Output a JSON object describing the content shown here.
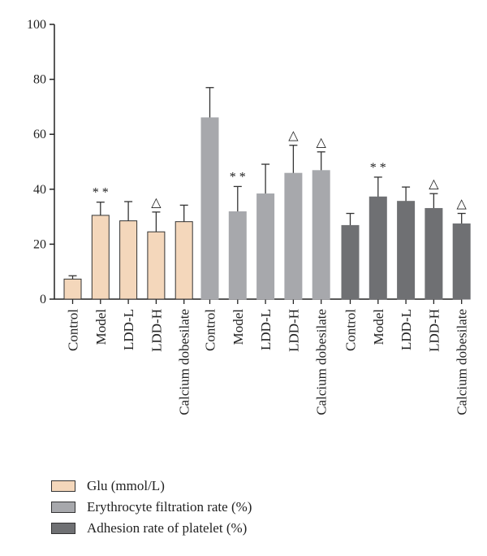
{
  "chart_data": {
    "type": "bar",
    "ylim": [
      0,
      100
    ],
    "yticks": [
      0,
      20,
      40,
      60,
      80,
      100
    ],
    "categories": [
      "Control",
      "Model",
      "LDD-L",
      "LDD-H",
      "Calcium dobesilate"
    ],
    "series": [
      {
        "name": "Glu (mmol/L)",
        "color": "#f4d7bb",
        "values": [
          7.3,
          30.5,
          28.5,
          24.5,
          28.2
        ],
        "errors": [
          1.2,
          4.8,
          7.0,
          7.2,
          6.0
        ],
        "annotations": [
          "",
          "**",
          "",
          "△",
          ""
        ]
      },
      {
        "name": "Erythrocyte filtration rate (%)",
        "color": "#a7a8ac",
        "values": [
          66.0,
          31.8,
          38.3,
          45.8,
          46.8
        ],
        "errors": [
          11.0,
          9.2,
          10.8,
          10.2,
          6.8
        ],
        "annotations": [
          "",
          "**",
          "",
          "△",
          "△"
        ]
      },
      {
        "name": "Adhesion rate of platelet (%)",
        "color": "#6f7073",
        "values": [
          26.8,
          37.2,
          35.6,
          33.0,
          27.4
        ],
        "errors": [
          4.4,
          7.2,
          5.2,
          5.4,
          3.8
        ],
        "annotations": [
          "",
          "**",
          "",
          "△",
          "△"
        ]
      }
    ]
  }
}
